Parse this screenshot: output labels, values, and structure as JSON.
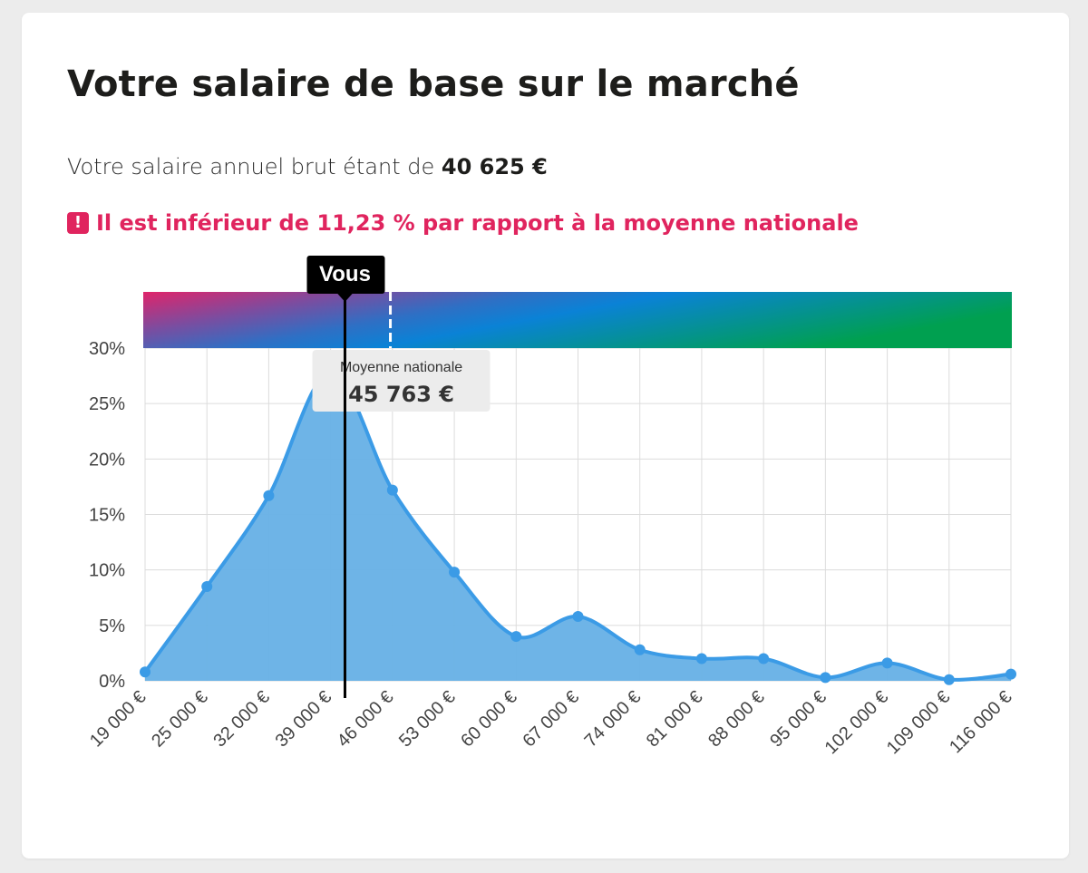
{
  "card": {
    "title": "Votre salaire de base sur le marché",
    "salary_prefix": "Votre salaire annuel brut étant de ",
    "salary_value": "40 625 €",
    "alert_icon": "!",
    "alert_text": "Il est inférieur de 11,23 % par rapport à la moyenne nationale"
  },
  "markers": {
    "you_label": "Vous",
    "you_value": 40625,
    "avg_label": "Moyenne nationale",
    "avg_value_text": "45 763 €",
    "avg_value": 45763
  },
  "colors": {
    "accent_pink": "#e0245e",
    "series_blue": "#3b9be6",
    "area_blue": "#66b0e6",
    "gradient": [
      "#e0246a",
      "#7a4da0",
      "#2f6fc4",
      "#0a82d6",
      "#00a050"
    ]
  },
  "chart_data": {
    "type": "area",
    "title": "",
    "xlabel": "",
    "ylabel": "",
    "x_tick_labels": [
      "19 000 €",
      "25 000 €",
      "32 000 €",
      "39 000 €",
      "46 000 €",
      "53 000 €",
      "60 000 €",
      "67 000 €",
      "74 000 €",
      "81 000 €",
      "88 000 €",
      "95 000 €",
      "102 000 €",
      "109 000 €",
      "116 000 €"
    ],
    "y_tick_labels": [
      "0%",
      "5%",
      "10%",
      "15%",
      "20%",
      "25%",
      "30%"
    ],
    "y_ticks": [
      0,
      5,
      10,
      15,
      20,
      25,
      30
    ],
    "ylim": [
      0,
      30
    ],
    "grid": true,
    "series": [
      {
        "values": [
          0.8,
          8.5,
          16.7,
          27.8,
          17.2,
          9.8,
          4.0,
          5.8,
          2.8,
          2.0,
          2.0,
          0.3,
          1.6,
          0.1,
          0.6
        ]
      }
    ]
  }
}
